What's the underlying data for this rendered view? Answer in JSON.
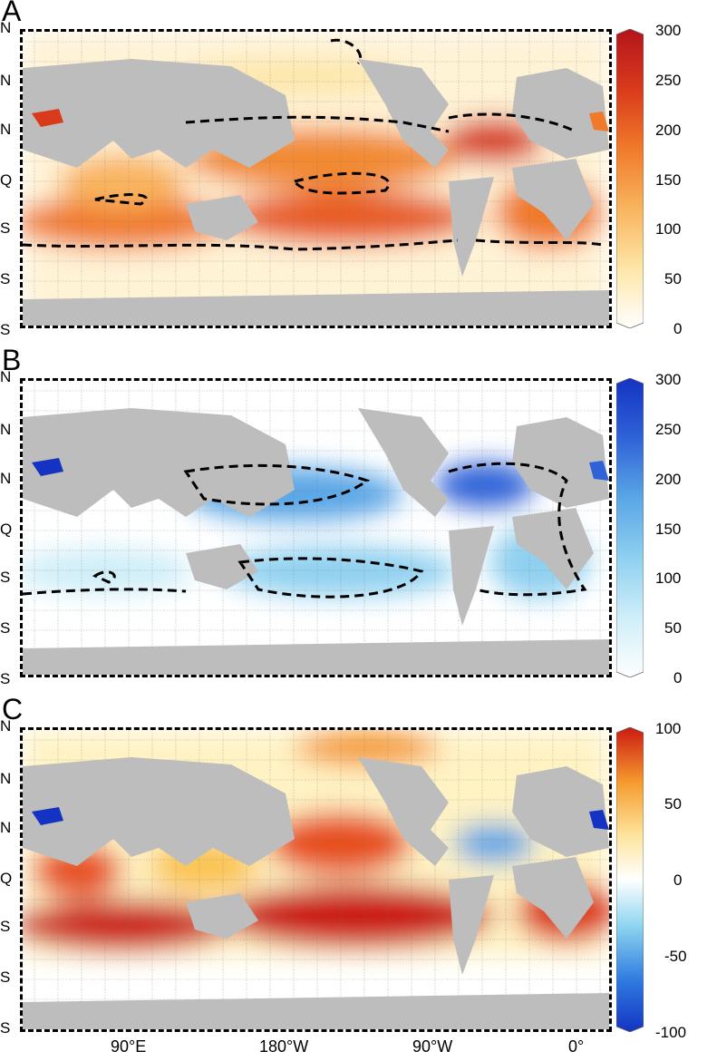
{
  "colors": {
    "land": "#bdbdbd",
    "ship_track": "#6e6e6e",
    "contour": "#000000",
    "panel_a_ramp": [
      "#ffffff",
      "#fde6a8",
      "#f9b45e",
      "#f07a2a",
      "#d93a1c",
      "#b3141b"
    ],
    "panel_b_ramp": [
      "#ffffff",
      "#cfeef8",
      "#8fd0f0",
      "#5aa6e6",
      "#2f62d8",
      "#1433c2"
    ],
    "panel_c_ramp": [
      "#1433c2",
      "#2f7be0",
      "#8fd6f0",
      "#ffffff",
      "#fde39a",
      "#f59a2e",
      "#cc1a12"
    ]
  },
  "latitude_ticks": [
    "N",
    "N",
    "N",
    "Q",
    "S",
    "S",
    "S"
  ],
  "longitude_ticks": [
    "90°E",
    "180°W",
    "90°W",
    "0°"
  ],
  "panels": [
    {
      "letter": "A",
      "colorbar": {
        "min": 0,
        "max": 300,
        "ticks": [
          "300",
          "250",
          "200",
          "150",
          "100",
          "50",
          "0"
        ]
      }
    },
    {
      "letter": "B",
      "colorbar": {
        "min": 0,
        "max": 300,
        "ticks": [
          "300",
          "250",
          "200",
          "150",
          "100",
          "50",
          "0"
        ]
      }
    },
    {
      "letter": "C",
      "colorbar": {
        "min": -100,
        "max": 100,
        "ticks": [
          "100",
          "50",
          "0",
          "-50",
          "-100"
        ]
      }
    }
  ]
}
